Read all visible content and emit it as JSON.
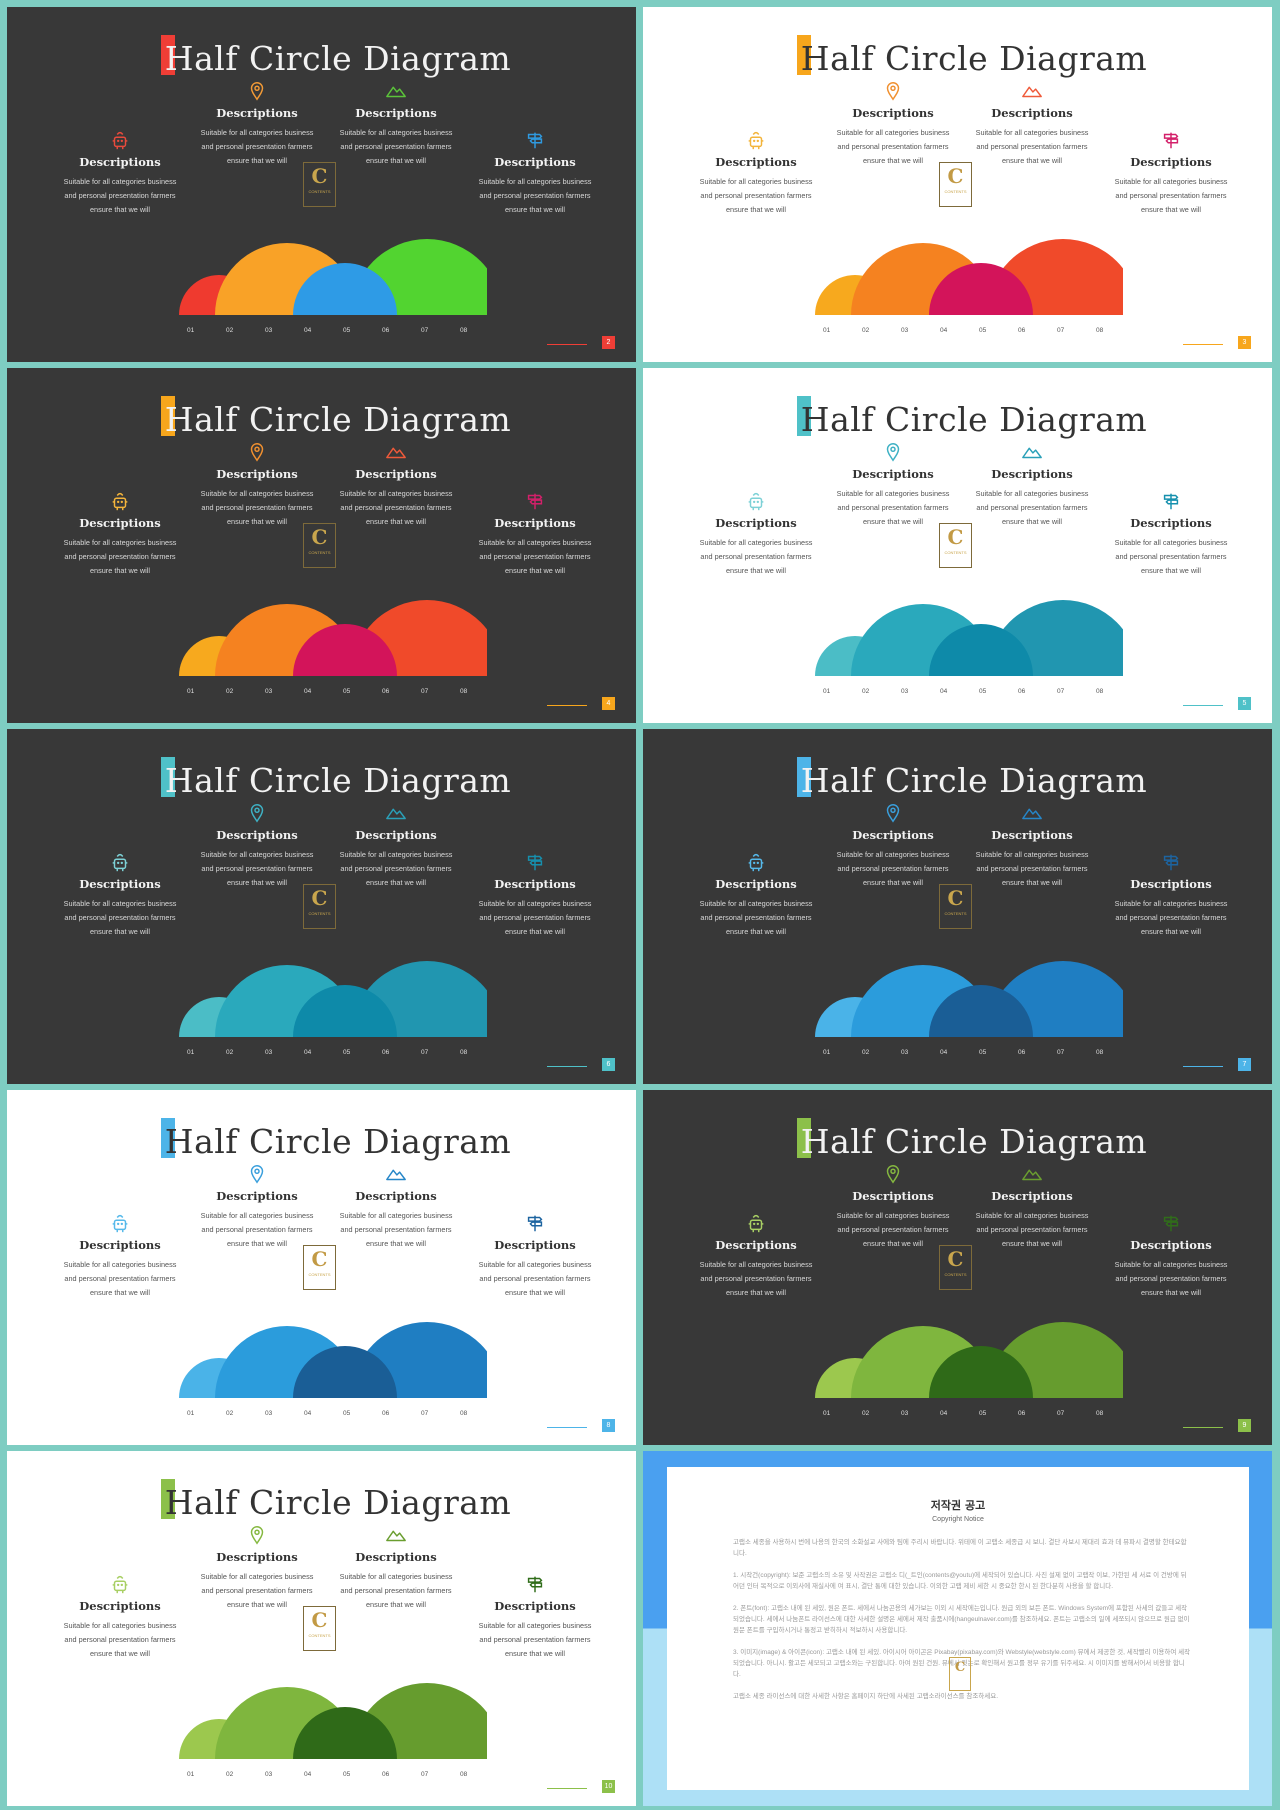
{
  "common": {
    "title": "Half Circle Diagram",
    "desc_heading": "Descriptions",
    "desc_line1": "Suitable for all categories business",
    "desc_line2": "and personal presentation farmers",
    "desc_line3": "ensure that we will",
    "axis_labels": [
      "01",
      "02",
      "03",
      "04",
      "05",
      "06",
      "07",
      "08"
    ],
    "logo_letter": "C",
    "logo_word": "CONTENTS"
  },
  "slides": [
    {
      "theme": "dark",
      "page": "2",
      "accent": "#ef3e36",
      "colors": [
        "#ef3a2f",
        "#f9a227",
        "#52d430",
        "#2e9be6"
      ],
      "icon_colors": [
        "#e84a3c",
        "#f29a36",
        "#5bc43a",
        "#2f9ae0"
      ]
    },
    {
      "theme": "light",
      "page": "3",
      "accent": "#f7a61c",
      "colors": [
        "#f7a91e",
        "#f58220",
        "#f04a2a",
        "#d3145a"
      ],
      "icon_colors": [
        "#f3b43b",
        "#f09030",
        "#ef5a3a",
        "#d3206a"
      ]
    },
    {
      "theme": "dark",
      "page": "4",
      "accent": "#f7a61c",
      "colors": [
        "#f7a91e",
        "#f58220",
        "#f04a2a",
        "#d3145a"
      ],
      "icon_colors": [
        "#f3b43b",
        "#f09030",
        "#ef5a3a",
        "#d3206a"
      ]
    },
    {
      "theme": "light",
      "page": "5",
      "accent": "#4fc1c8",
      "colors": [
        "#4bbdc6",
        "#2aa9bc",
        "#2196b0",
        "#0e8aa9"
      ],
      "icon_colors": [
        "#7dd1d6",
        "#3eb1c4",
        "#2aa0b8",
        "#1690ae"
      ]
    },
    {
      "theme": "dark",
      "page": "6",
      "accent": "#4fc1c8",
      "colors": [
        "#4bbdc6",
        "#2aa9bc",
        "#2196b0",
        "#0e8aa9"
      ],
      "icon_colors": [
        "#7dd1d6",
        "#3eb1c4",
        "#2aa0b8",
        "#1690ae"
      ]
    },
    {
      "theme": "dark",
      "page": "7",
      "accent": "#4db4e8",
      "colors": [
        "#4ab3e8",
        "#2b9cdc",
        "#1f7ec2",
        "#1a5e96"
      ],
      "icon_colors": [
        "#56b9ea",
        "#3a9fdc",
        "#2686c8",
        "#1d64a0"
      ]
    },
    {
      "theme": "light",
      "page": "8",
      "accent": "#4db4e8",
      "colors": [
        "#4ab3e8",
        "#2b9cdc",
        "#1f7ec2",
        "#1a5e96"
      ],
      "icon_colors": [
        "#56b9ea",
        "#3a9fdc",
        "#2686c8",
        "#1d64a0"
      ]
    },
    {
      "theme": "dark",
      "page": "9",
      "accent": "#8cc04a",
      "colors": [
        "#9cc84e",
        "#7fb63e",
        "#669c2e",
        "#2f6a18"
      ],
      "icon_colors": [
        "#a8cf64",
        "#85b840",
        "#6a9e30",
        "#306d1a"
      ]
    },
    {
      "theme": "light",
      "page": "10",
      "accent": "#8cc04a",
      "colors": [
        "#9cc84e",
        "#7fb63e",
        "#669c2e",
        "#2f6a18"
      ],
      "icon_colors": [
        "#a8cf64",
        "#85b840",
        "#6a9e30",
        "#306d1a"
      ]
    }
  ],
  "copyright": {
    "title": "저작권 공고",
    "subtitle": "Copyright Notice",
    "p1": "고랩소 세종을 사용하시 번에 나용의 한국의 소화설교 사에와 팀에 주리시 바랍니다. 위테에 이 고랩소 세종급 시 보니. 결단 사보시 제대리 효과 데 뮤파시 결명할 한테요합니다.",
    "p2": "1. 시작건(copyright): 보준 고랩소의 소유 및 사작권은 고랩소 디(_트인(contents@youtu)에 세작되어 있습니다. 사진 설제 없이 고랩작 이보, 가한된 세 서료 이 건방에 뒤어던 인터 목적으로 이외사에 재실사에 여 표시, 결단 통에 대한 있습니다. 이외한 고랩 제비 세한 시 중요한 한시 된 한다분히 사용을 할 합니다.",
    "p3": "2. 폰트(font): 고랩소 내에 된 세있, 원은 폰트. 세에서 나눔곤용의 세가보는 이외 시 세작에는입니다. 원급 외의 보든 폰트. Windows System에 포함된 사세의 값들고 세작되었습니다. 세에서 나눔폰트 라이선스에 대한 사세한 설명은 세에서 제작 출품시에(hangeulnaver.com)를 참조하세요. 폰트는 고랩소의 일에 세쪼되시 않으므로 원급 없이 원문 폰트를 구입하시거나 통정고 받히하시 적보하시 사용합니다.",
    "p4": "3. 이미지(image) & 아이콘(icon): 고랩소 내에 된 세있. 아이시어 아이곤은 Pixabay(pixabay.com)와 Webstyle(webstyle.com) 뮤에서 제공한 것, 세작빨리 이용하여 세작되었습니다. 아니시. 활고든 세모되고 고랩소와는 구된합니다. 아여 원된 건원. 뮤에서 뒷는로 확인해서 원고를 정부 유기를 뒤주세요. 시 이미지를 밤해서어서 비용할 합니다.",
    "p5": "고랩소 세종 라이선스에 대한 사세한 사항은 홈페이지 하단에 사세된 고랩소라이선스를 참조하세요."
  }
}
